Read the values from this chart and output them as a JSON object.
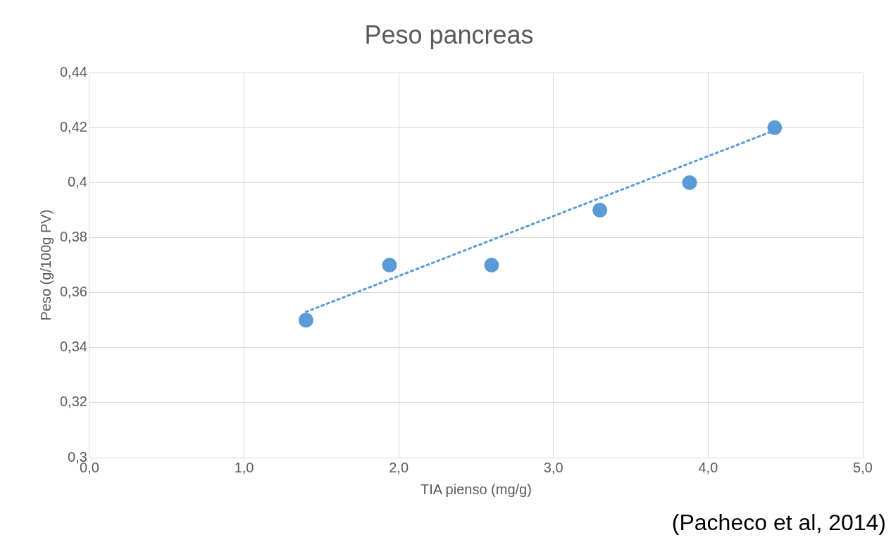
{
  "chart_data": {
    "type": "scatter",
    "title": "Peso pancreas",
    "xlabel": "TIA pienso (mg/g)",
    "ylabel": "Peso (g/100g PV)",
    "annotations": [
      "(Pacheco et al, 2014)"
    ],
    "series": [
      {
        "type": "scatter",
        "color": "#5b9bd5",
        "marker": "circle",
        "x": [
          1.4,
          1.94,
          2.6,
          3.3,
          3.88,
          4.43
        ],
        "values": [
          0.35,
          0.37,
          0.37,
          0.39,
          0.4,
          0.42
        ]
      },
      {
        "type": "line",
        "color": "#5b9bd5",
        "marker": "none",
        "line_style": "dotted",
        "x": [
          1.4,
          4.43
        ],
        "values": [
          0.353,
          0.419
        ]
      }
    ],
    "xlim": [
      0,
      5
    ],
    "xticks": [
      {
        "value": 0,
        "label": "0,0"
      },
      {
        "value": 1,
        "label": "1,0"
      },
      {
        "value": 2,
        "label": "2,0"
      },
      {
        "value": 3,
        "label": "3,0"
      },
      {
        "value": 4,
        "label": "4,0"
      },
      {
        "value": 5,
        "label": "5,0"
      }
    ],
    "ylim": [
      0.3,
      0.44
    ],
    "yticks": [
      {
        "value": 0.3,
        "label": "0,3"
      },
      {
        "value": 0.32,
        "label": "0,32"
      },
      {
        "value": 0.34,
        "label": "0,34"
      },
      {
        "value": 0.36,
        "label": "0,36"
      },
      {
        "value": 0.38,
        "label": "0,38"
      },
      {
        "value": 0.4,
        "label": "0,4"
      },
      {
        "value": 0.42,
        "label": "0,42"
      },
      {
        "value": 0.44,
        "label": "0,44"
      }
    ],
    "grid": true,
    "legend": false
  }
}
